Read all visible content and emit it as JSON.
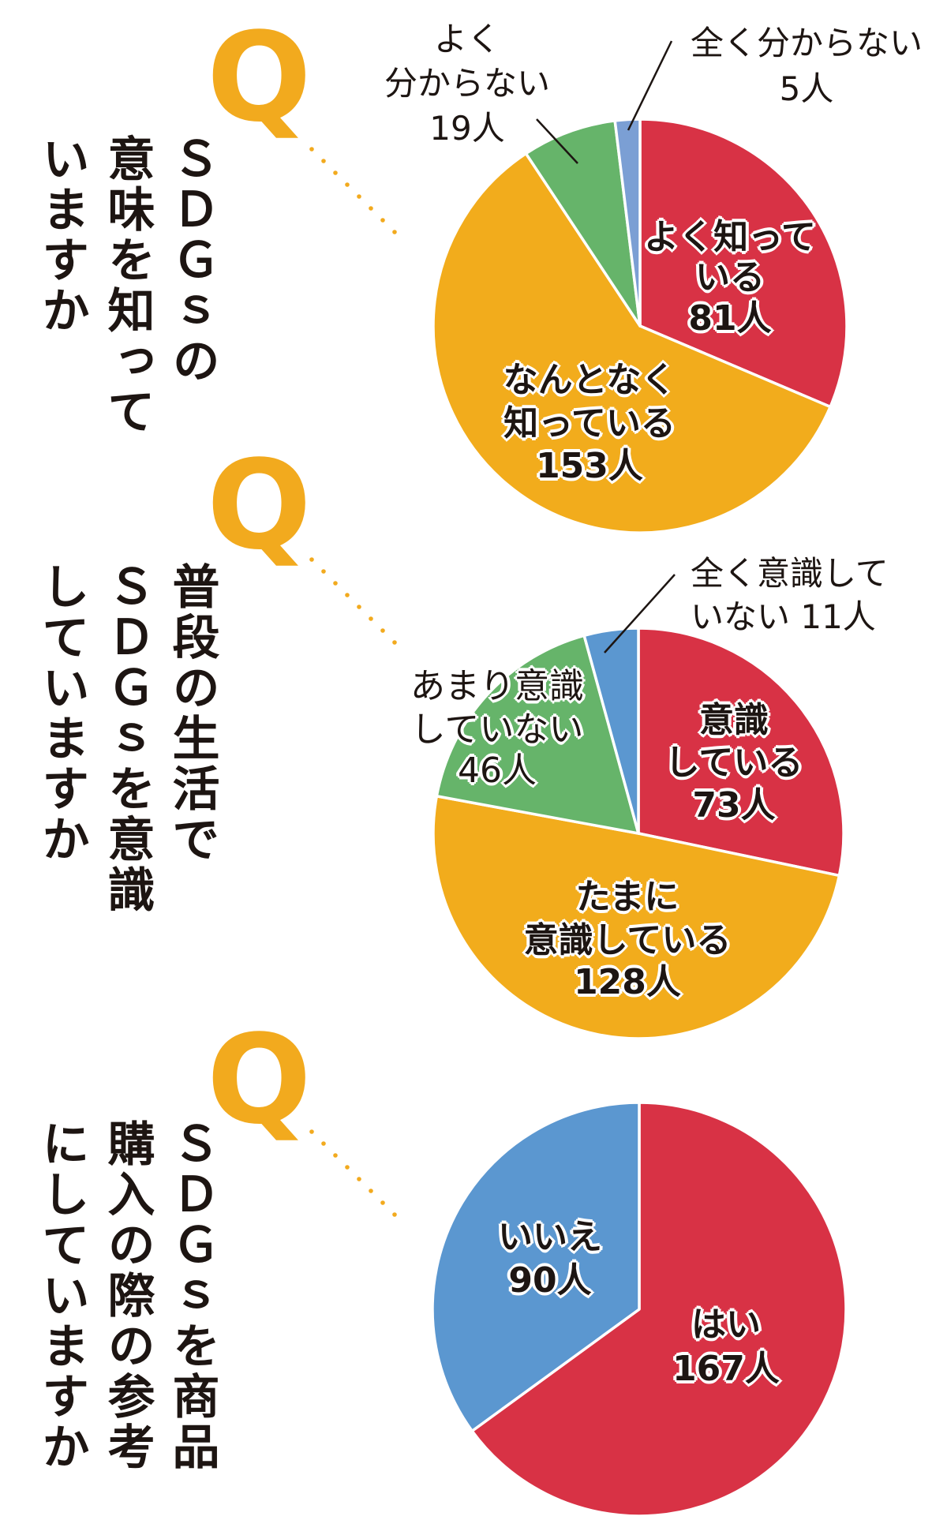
{
  "colors": {
    "accent_q": "#f2aa1e",
    "red": "#d83245",
    "orange": "#f2ac1c",
    "green": "#66b46a",
    "blue_light": "#7b9fd4",
    "blue": "#5b97d0",
    "text": "#1d1512"
  },
  "questions": [
    {
      "q_mark": "Q",
      "title_columns": [
        "ＳＤＧｓの",
        "意味を知って",
        "いますか"
      ],
      "labels": {
        "well_known": [
          "よく知って",
          "いる",
          "81人"
        ],
        "somewhat_known": [
          "なんとなく",
          "知っている",
          "153人"
        ],
        "not_well": [
          "よく",
          "分からない",
          "19人"
        ],
        "not_at_all": [
          "全く分からない",
          "5人"
        ]
      }
    },
    {
      "q_mark": "Q",
      "title_columns": [
        "普段の生活で",
        "ＳＤＧｓを意識",
        "していますか"
      ],
      "labels": {
        "aware": [
          "意識",
          "している",
          "73人"
        ],
        "sometimes": [
          "たまに",
          "意識している",
          "128人"
        ],
        "rarely": [
          "あまり意識",
          "していない",
          "46人"
        ],
        "never": [
          "全く意識して",
          "いない 11人"
        ]
      }
    },
    {
      "q_mark": "Q",
      "title_columns": [
        "ＳＤＧｓを商品",
        "購入の際の参考",
        "にしていますか"
      ],
      "labels": {
        "yes": [
          "はい",
          "167人"
        ],
        "no": [
          "いいえ",
          "90人"
        ]
      }
    }
  ],
  "chart_data": [
    {
      "type": "pie",
      "title": "SDGsの意味を知っていますか",
      "unit": "人",
      "categories": [
        "よく知っている",
        "なんとなく知っている",
        "よく分からない",
        "全く分からない"
      ],
      "values": [
        81,
        153,
        19,
        5
      ],
      "colors": [
        "#d83245",
        "#f2ac1c",
        "#66b46a",
        "#7b9fd4"
      ],
      "start_angle": "12 o'clock, clockwise"
    },
    {
      "type": "pie",
      "title": "普段の生活でSDGsを意識していますか",
      "unit": "人",
      "categories": [
        "意識している",
        "たまに意識している",
        "あまり意識していない",
        "全く意識していない"
      ],
      "values": [
        73,
        128,
        46,
        11
      ],
      "colors": [
        "#d83245",
        "#f2ac1c",
        "#66b46a",
        "#5b97d0"
      ],
      "start_angle": "12 o'clock, clockwise"
    },
    {
      "type": "pie",
      "title": "SDGsを商品購入の際の参考にしていますか",
      "unit": "人",
      "categories": [
        "はい",
        "いいえ"
      ],
      "values": [
        167,
        90
      ],
      "colors": [
        "#d83245",
        "#5b97d0"
      ],
      "start_angle": "12 o'clock, clockwise"
    }
  ]
}
